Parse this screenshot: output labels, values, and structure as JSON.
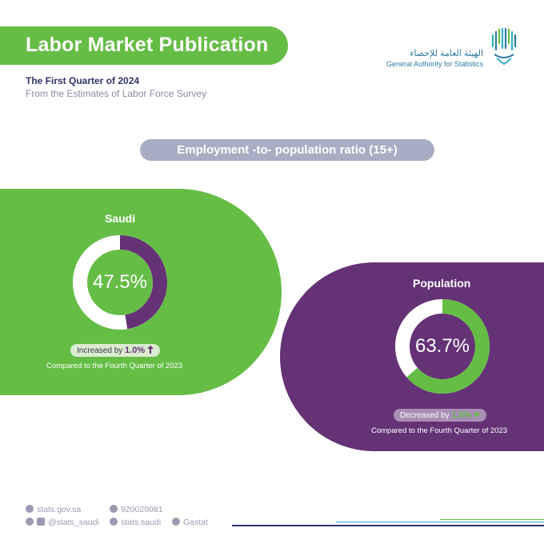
{
  "header": {
    "title": "Labor Market Publication",
    "subtitle": "The First Quarter of 2024",
    "source_line": "From the Estimates of Labor Force Survey"
  },
  "logo": {
    "arabic_name": "الهيئة العامة للإحصاء",
    "english_name": "General Authority for Statistics"
  },
  "section_title": "Employment -to- population ratio (15+)",
  "chart_data": [
    {
      "type": "pie",
      "title": "Saudi",
      "value": 47.5,
      "value_label": "47.5%",
      "change": {
        "text": "Increased by",
        "amount": "1.0%",
        "direction": "up"
      },
      "comparison": "Compared to the Fourth Quarter of 2023",
      "colors": {
        "filled": "#653276",
        "remainder": "#ffffff",
        "panel": "#66bd46"
      }
    },
    {
      "type": "pie",
      "title": "Population",
      "value": 63.7,
      "value_label": "63.7%",
      "change": {
        "text": "Decreased by",
        "amount": "1.0%",
        "direction": "down"
      },
      "comparison": "Compared to the Fourth Quarter of 2023",
      "colors": {
        "filled": "#66bd46",
        "remainder": "#ffffff",
        "panel": "#653276"
      }
    }
  ],
  "footer": {
    "website": "stats.gov.sa",
    "phone": "920020081",
    "social_x_ig": "@stats_saudi",
    "facebook": "stats.saudi",
    "linkedin": "Gastat"
  },
  "colors": {
    "green": "#66bd46",
    "purple": "#653276",
    "navy": "#2f3468",
    "grey_pill": "#a8adc3"
  }
}
